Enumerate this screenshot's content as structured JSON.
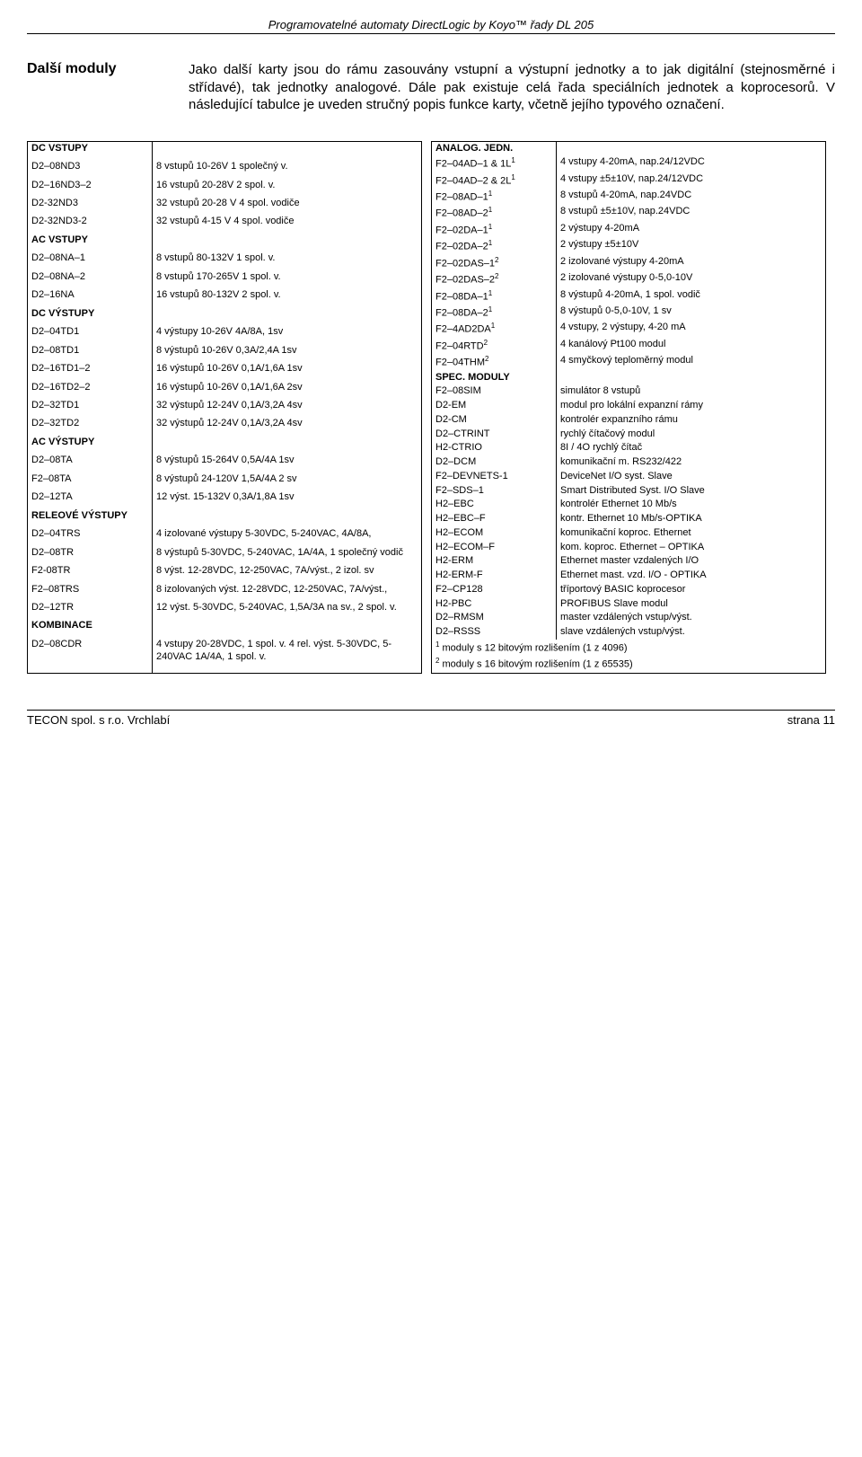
{
  "header": "Programovatelné automaty DirectLogic  by Koyo™ řady DL 205",
  "intro": {
    "label": "Další moduly",
    "text": "Jako další karty jsou do rámu zasouvány vstupní a výstupní jednotky a to jak digitální (stejnosměrné i střídavé), tak jednotky analogové. Dále pak existuje celá řada speciálních jednotek a koprocesorů. V následující tabulce je uveden stručný popis funkce karty, včetně jejího typového označení."
  },
  "left": [
    {
      "s": "DC VSTUPY"
    },
    {
      "k": "D2–08ND3",
      "v": "8 vstupů 10-26V 1 společný v."
    },
    {
      "k": "D2–16ND3–2",
      "v": "16 vstupů 20-28V 2 spol. v."
    },
    {
      "k": "D2-32ND3",
      "v": "32 vstupů 20-28 V 4 spol. vodiče"
    },
    {
      "k": "D2-32ND3-2",
      "v": "32 vstupů 4-15 V 4 spol. vodiče"
    },
    {
      "s": "AC VSTUPY"
    },
    {
      "k": "D2–08NA–1",
      "v": "8 vstupů 80-132V 1 spol. v."
    },
    {
      "k": "D2–08NA–2",
      "v": "8 vstupů 170-265V 1 spol. v."
    },
    {
      "k": "D2–16NA",
      "v": "16 vstupů 80-132V 2 spol. v."
    },
    {
      "s": "DC VÝSTUPY"
    },
    {
      "k": "D2–04TD1",
      "v": "4 výstupy 10-26V 4A/8A, 1sv"
    },
    {
      "k": "D2–08TD1",
      "v": "8 výstupů 10-26V 0,3A/2,4A 1sv"
    },
    {
      "k": "D2–16TD1–2",
      "v": "16 výstupů 10-26V 0,1A/1,6A 1sv"
    },
    {
      "k": "D2–16TD2–2",
      "v": "16 výstupů 10-26V 0,1A/1,6A 2sv"
    },
    {
      "k": "D2–32TD1",
      "v": "32 výstupů 12-24V 0,1A/3,2A 4sv"
    },
    {
      "k": "D2–32TD2",
      "v": "32 výstupů 12-24V 0,1A/3,2A 4sv"
    },
    {
      "s": "AC VÝSTUPY"
    },
    {
      "k": "D2–08TA",
      "v": "8 výstupů 15-264V 0,5A/4A 1sv"
    },
    {
      "k": "F2–08TA",
      "v": "8 výstupů 24-120V 1,5A/4A 2 sv"
    },
    {
      "k": "D2–12TA",
      "v": "12 výst. 15-132V 0,3A/1,8A 1sv"
    },
    {
      "s": "RELEOVÉ VÝSTUPY"
    },
    {
      "k": "D2–04TRS",
      "v": "4 izolované výstupy 5-30VDC, 5-240VAC, 4A/8A,"
    },
    {
      "k": "D2–08TR",
      "v": "8 výstupů 5-30VDC, 5-240VAC, 1A/4A, 1 společný vodič"
    },
    {
      "k": "F2-08TR",
      "v": "8 výst. 12-28VDC, 12-250VAC, 7A/výst., 2 izol. sv"
    },
    {
      "k": "F2–08TRS",
      "v": "8 izolovaných výst. 12-28VDC, 12-250VAC, 7A/výst.,"
    },
    {
      "k": "D2–12TR",
      "v": "12 výst. 5-30VDC, 5-240VAC, 1,5A/3A na sv., 2 spol. v."
    },
    {
      "s": "KOMBINACE"
    },
    {
      "k": "D2–08CDR",
      "v": "4 vstupy 20-28VDC, 1 spol. v. 4 rel. výst. 5-30VDC, 5-240VAC 1A/4A, 1 spol. v."
    }
  ],
  "right": [
    {
      "s": "ANALOG. JEDN."
    },
    {
      "k": "F2–04AD–1 & 1L",
      "sup": "1",
      "v": "4 vstupy 4-20mA, nap.24/12VDC"
    },
    {
      "k": "F2–04AD–2 & 2L",
      "sup": "1",
      "v": "4 vstupy ±5±10V, nap.24/12VDC"
    },
    {
      "k": "F2–08AD–1",
      "sup": "1",
      "v": "8 vstupů 4-20mA, nap.24VDC"
    },
    {
      "k": "F2–08AD–2",
      "sup": "1",
      "v": "8 vstupů ±5±10V, nap.24VDC"
    },
    {
      "k": "F2–02DA–1",
      "sup": "1",
      "v": "2 výstupy 4-20mA"
    },
    {
      "k": "F2–02DA–2",
      "sup": "1",
      "v": "2 výstupy ±5±10V"
    },
    {
      "k": "F2–02DAS–1",
      "sup": "2",
      "v": "2 izolované výstupy 4-20mA"
    },
    {
      "k": "F2–02DAS–2",
      "sup": "2",
      "v": "2 izolované výstupy 0-5,0-10V"
    },
    {
      "k": "F2–08DA–1",
      "sup": "1",
      "v": "8 výstupů 4-20mA, 1 spol. vodič"
    },
    {
      "k": "F2–08DA–2",
      "sup": "1",
      "v": "8 výstupů 0-5,0-10V, 1 sv"
    },
    {
      "k": "F2–4AD2DA",
      "sup": "1",
      "v": "4 vstupy, 2 výstupy, 4-20 mA"
    },
    {
      "k": "F2–04RTD",
      "sup": "2",
      "v": "4 kanálový Pt100 modul"
    },
    {
      "k": "F2–04THM",
      "sup": "2",
      "v": "4 smyčkový teploměrný modul"
    },
    {
      "s": "SPEC. MODULY"
    },
    {
      "k": "F2–08SIM",
      "v": "simulátor 8 vstupů"
    },
    {
      "k": "D2-EM",
      "v": "modul pro lokální expanzní rámy"
    },
    {
      "k": "D2-CM",
      "v": "kontrolér expanzního rámu"
    },
    {
      "k": "D2–CTRINT",
      "v": "rychlý čítačový modul"
    },
    {
      "k": "H2-CTRIO",
      "v": "8I / 4O rychlý čítač"
    },
    {
      "k": "D2–DCM",
      "v": "komunikační m. RS232/422"
    },
    {
      "k": "F2–DEVNETS-1",
      "v": "DeviceNet I/O syst. Slave"
    },
    {
      "k": "F2–SDS–1",
      "v": "Smart Distributed Syst. I/O Slave"
    },
    {
      "k": "H2–EBC",
      "v": "kontrolér Ethernet 10 Mb/s"
    },
    {
      "k": "H2–EBC–F",
      "v": "kontr. Ethernet 10 Mb/s-OPTIKA"
    },
    {
      "k": "H2–ECOM",
      "v": "komunikační koproc. Ethernet"
    },
    {
      "k": "H2–ECOM–F",
      "v": "kom. koproc. Ethernet – OPTIKA"
    },
    {
      "k": "H2-ERM",
      "v": "Ethernet master vzdalených I/O"
    },
    {
      "k": "H2-ERM-F",
      "v": "Ethernet mast. vzd. I/O - OPTIKA"
    },
    {
      "k": "F2–CP128",
      "v": "tříportový BASIC koprocesor"
    },
    {
      "k": "H2-PBC",
      "v": "PROFIBUS Slave modul"
    },
    {
      "k": "D2–RMSM",
      "v": "master vzdálených vstup/výst."
    },
    {
      "k": "D2–RSSS",
      "v": "slave vzdálených vstup/výst."
    }
  ],
  "footnotes": [
    {
      "n": "1",
      "t": "moduly s 12 bitovým rozlišením (1 z 4096)"
    },
    {
      "n": "2",
      "t": "moduly s 16 bitovým rozlišením (1 z 65535)"
    }
  ],
  "footer": {
    "left": "TECON spol. s r.o.   Vrchlabí",
    "right": "strana 11"
  }
}
